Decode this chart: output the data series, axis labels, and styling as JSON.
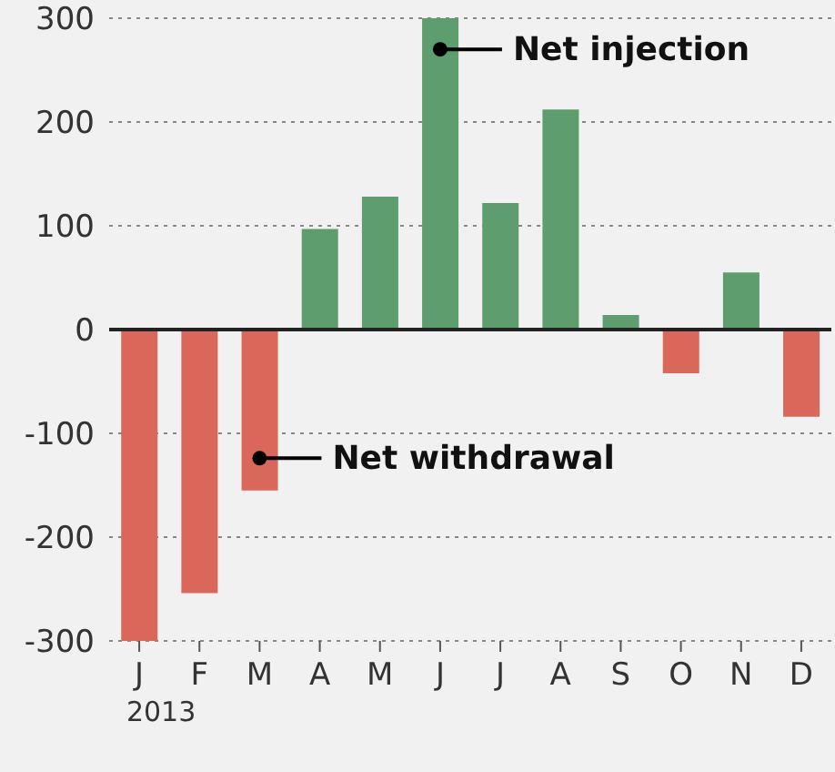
{
  "chart_data": {
    "type": "bar",
    "categories": [
      "J",
      "F",
      "M",
      "A",
      "M",
      "J",
      "J",
      "A",
      "S",
      "O",
      "N",
      "D"
    ],
    "values": [
      -300,
      -254,
      -155,
      97,
      128,
      300,
      122,
      212,
      14,
      -42,
      55,
      -84
    ],
    "colors": [
      "#d9675a",
      "#d9675a",
      "#d9675a",
      "#5e9e6e",
      "#5e9e6e",
      "#5e9e6e",
      "#5e9e6e",
      "#5e9e6e",
      "#5e9e6e",
      "#d9675a",
      "#5e9e6e",
      "#d9675a"
    ],
    "ylim": [
      -300,
      300
    ],
    "yticks": [
      -300,
      -200,
      -100,
      0,
      100,
      200,
      300
    ],
    "grid": "y",
    "ref_lines": [
      {
        "axis": "y",
        "value": 0,
        "color": "#222222"
      }
    ],
    "annotations": [
      "Net injection",
      "Net withdrawal",
      "2013"
    ]
  }
}
